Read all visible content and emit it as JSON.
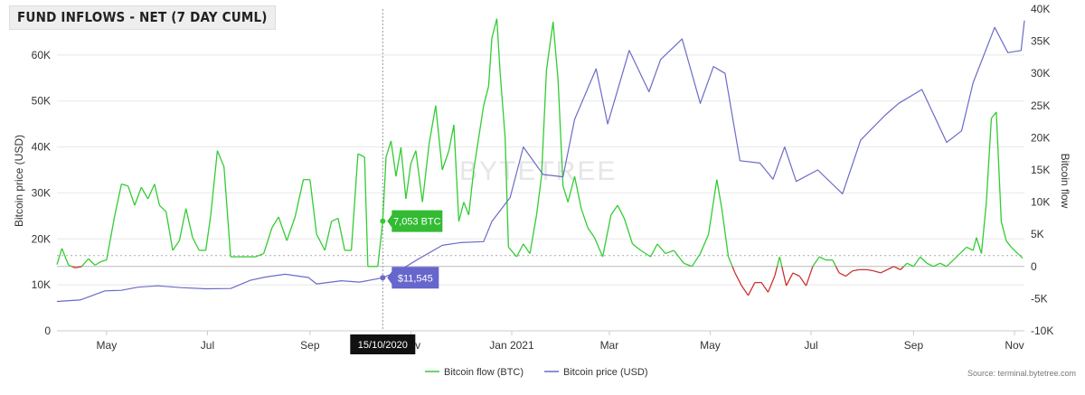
{
  "chart_data": {
    "title": "FUND INFLOWS - NET (7 DAY CUML)",
    "type": "line",
    "x_axis": {
      "ticks": [
        "May",
        "Jul",
        "Sep",
        "Nov",
        "Jan 2021",
        "Mar",
        "May",
        "Jul",
        "Sep",
        "Nov"
      ],
      "start": "2020-04-01",
      "end": "2021-11-07"
    },
    "y_left": {
      "label": "Bitcoin price (USD)",
      "ticks": [
        "0",
        "10K",
        "20K",
        "30K",
        "40K",
        "50K",
        "60K"
      ],
      "range": [
        0,
        70000
      ]
    },
    "y_right": {
      "label": "Bitcoin flow",
      "ticks": [
        "-10K",
        "-5K",
        "0",
        "5K",
        "10K",
        "15K",
        "20K",
        "25K",
        "30K",
        "35K",
        "40K"
      ],
      "range": [
        -10000,
        40000
      ]
    },
    "crosshair": {
      "date": "15/10/2020",
      "flow_label": "7,053 BTC",
      "price_label": "$11,545",
      "flow": 7053,
      "price": 11545
    },
    "watermark": "BYTETREE",
    "source": "Source: terminal.bytetree.com",
    "colors": {
      "flow_positive": "#33cc33",
      "flow_negative": "#cc3333",
      "price": "#6b6bc8",
      "flow_label_bg": "#33bb33",
      "price_label_bg": "#6666cc"
    },
    "series": [
      {
        "name": "Bitcoin flow (BTC)",
        "axis": "right",
        "points": [
          [
            "2020-04-01",
            300
          ],
          [
            "2020-04-04",
            2800
          ],
          [
            "2020-04-08",
            200
          ],
          [
            "2020-04-12",
            -200
          ],
          [
            "2020-04-16",
            0
          ],
          [
            "2020-04-20",
            1200
          ],
          [
            "2020-04-24",
            200
          ],
          [
            "2020-04-28",
            800
          ],
          [
            "2020-05-01",
            1000
          ],
          [
            "2020-05-06",
            8000
          ],
          [
            "2020-05-10",
            12800
          ],
          [
            "2020-05-14",
            12500
          ],
          [
            "2020-05-18",
            9500
          ],
          [
            "2020-05-22",
            12300
          ],
          [
            "2020-05-26",
            10500
          ],
          [
            "2020-05-30",
            12800
          ],
          [
            "2020-06-02",
            9500
          ],
          [
            "2020-06-06",
            8500
          ],
          [
            "2020-06-10",
            2500
          ],
          [
            "2020-06-14",
            4000
          ],
          [
            "2020-06-18",
            9000
          ],
          [
            "2020-06-22",
            4500
          ],
          [
            "2020-06-26",
            2500
          ],
          [
            "2020-06-30",
            2500
          ],
          [
            "2020-07-03",
            8000
          ],
          [
            "2020-07-07",
            18000
          ],
          [
            "2020-07-11",
            15500
          ],
          [
            "2020-07-15",
            1500
          ],
          [
            "2020-07-19",
            1500
          ],
          [
            "2020-07-25",
            1500
          ],
          [
            "2020-07-30",
            1500
          ],
          [
            "2020-08-04",
            2000
          ],
          [
            "2020-08-09",
            6000
          ],
          [
            "2020-08-13",
            7700
          ],
          [
            "2020-08-18",
            4000
          ],
          [
            "2020-08-23",
            7700
          ],
          [
            "2020-08-28",
            13500
          ],
          [
            "2020-09-01",
            13500
          ],
          [
            "2020-09-05",
            5000
          ],
          [
            "2020-09-10",
            2500
          ],
          [
            "2020-09-14",
            7000
          ],
          [
            "2020-09-18",
            7500
          ],
          [
            "2020-09-22",
            2500
          ],
          [
            "2020-09-26",
            2500
          ],
          [
            "2020-09-30",
            17500
          ],
          [
            "2020-10-04",
            17000
          ],
          [
            "2020-10-06",
            0
          ],
          [
            "2020-10-12",
            0
          ],
          [
            "2020-10-15",
            7053
          ],
          [
            "2020-10-17",
            17000
          ],
          [
            "2020-10-20",
            19500
          ],
          [
            "2020-10-23",
            14000
          ],
          [
            "2020-10-26",
            18500
          ],
          [
            "2020-10-29",
            10500
          ],
          [
            "2020-11-01",
            16000
          ],
          [
            "2020-11-04",
            18000
          ],
          [
            "2020-11-08",
            10000
          ],
          [
            "2020-11-12",
            19000
          ],
          [
            "2020-11-16",
            25000
          ],
          [
            "2020-11-20",
            15000
          ],
          [
            "2020-11-24",
            18000
          ],
          [
            "2020-11-27",
            22000
          ],
          [
            "2020-11-30",
            7000
          ],
          [
            "2020-12-03",
            10000
          ],
          [
            "2020-12-06",
            8000
          ],
          [
            "2020-12-09",
            15000
          ],
          [
            "2020-12-12",
            20000
          ],
          [
            "2020-12-15",
            25000
          ],
          [
            "2020-12-18",
            28000
          ],
          [
            "2020-12-20",
            35500
          ],
          [
            "2020-12-23",
            38500
          ],
          [
            "2020-12-25",
            30000
          ],
          [
            "2020-12-28",
            20000
          ],
          [
            "2020-12-30",
            3000
          ],
          [
            "2021-01-04",
            1500
          ],
          [
            "2021-01-08",
            3500
          ],
          [
            "2021-01-12",
            2000
          ],
          [
            "2021-01-16",
            8000
          ],
          [
            "2021-01-19",
            14000
          ],
          [
            "2021-01-22",
            30500
          ],
          [
            "2021-01-26",
            38000
          ],
          [
            "2021-01-29",
            29000
          ],
          [
            "2021-02-01",
            12500
          ],
          [
            "2021-02-04",
            10000
          ],
          [
            "2021-02-08",
            14000
          ],
          [
            "2021-02-12",
            9000
          ],
          [
            "2021-02-16",
            6000
          ],
          [
            "2021-02-20",
            4500
          ],
          [
            "2021-02-25",
            1500
          ],
          [
            "2021-03-02",
            8000
          ],
          [
            "2021-03-06",
            9500
          ],
          [
            "2021-03-10",
            7500
          ],
          [
            "2021-03-15",
            3500
          ],
          [
            "2021-03-20",
            2500
          ],
          [
            "2021-03-26",
            1500
          ],
          [
            "2021-03-30",
            3500
          ],
          [
            "2021-04-04",
            2000
          ],
          [
            "2021-04-09",
            2500
          ],
          [
            "2021-04-15",
            500
          ],
          [
            "2021-04-20",
            0
          ],
          [
            "2021-04-25",
            2000
          ],
          [
            "2021-04-30",
            5000
          ],
          [
            "2021-05-05",
            13500
          ],
          [
            "2021-05-08",
            9000
          ],
          [
            "2021-05-12",
            1500
          ],
          [
            "2021-05-16",
            -1000
          ],
          [
            "2021-05-20",
            -3000
          ],
          [
            "2021-05-24",
            -4500
          ],
          [
            "2021-05-28",
            -2500
          ],
          [
            "2021-06-01",
            -2500
          ],
          [
            "2021-06-05",
            -4000
          ],
          [
            "2021-06-09",
            -1500
          ],
          [
            "2021-06-12",
            1500
          ],
          [
            "2021-06-16",
            -3000
          ],
          [
            "2021-06-20",
            -1000
          ],
          [
            "2021-06-24",
            -1500
          ],
          [
            "2021-06-28",
            -3000
          ],
          [
            "2021-07-02",
            0
          ],
          [
            "2021-07-06",
            1500
          ],
          [
            "2021-07-10",
            1000
          ],
          [
            "2021-07-14",
            1000
          ],
          [
            "2021-07-18",
            -1000
          ],
          [
            "2021-07-22",
            -1500
          ],
          [
            "2021-07-26",
            -700
          ],
          [
            "2021-07-30",
            -500
          ],
          [
            "2021-08-04",
            -500
          ],
          [
            "2021-08-08",
            -700
          ],
          [
            "2021-08-12",
            -1000
          ],
          [
            "2021-08-16",
            -500
          ],
          [
            "2021-08-20",
            0
          ],
          [
            "2021-08-24",
            -500
          ],
          [
            "2021-08-28",
            500
          ],
          [
            "2021-09-01",
            0
          ],
          [
            "2021-09-05",
            1500
          ],
          [
            "2021-09-09",
            500
          ],
          [
            "2021-09-13",
            0
          ],
          [
            "2021-09-17",
            500
          ],
          [
            "2021-09-21",
            0
          ],
          [
            "2021-09-25",
            1000
          ],
          [
            "2021-09-29",
            2000
          ],
          [
            "2021-10-03",
            3000
          ],
          [
            "2021-10-07",
            2500
          ],
          [
            "2021-10-09",
            4500
          ],
          [
            "2021-10-12",
            2000
          ],
          [
            "2021-10-15",
            10000
          ],
          [
            "2021-10-18",
            23000
          ],
          [
            "2021-10-21",
            24000
          ],
          [
            "2021-10-24",
            7000
          ],
          [
            "2021-10-27",
            4000
          ],
          [
            "2021-10-30",
            3000
          ],
          [
            "2021-11-03",
            2000
          ],
          [
            "2021-11-06",
            1300
          ]
        ]
      },
      {
        "name": "Bitcoin price (USD)",
        "axis": "left",
        "points": [
          [
            "2020-04-01",
            6400
          ],
          [
            "2020-04-15",
            6700
          ],
          [
            "2020-04-30",
            8700
          ],
          [
            "2020-05-10",
            8800
          ],
          [
            "2020-05-20",
            9500
          ],
          [
            "2020-06-01",
            9800
          ],
          [
            "2020-06-15",
            9400
          ],
          [
            "2020-06-30",
            9150
          ],
          [
            "2020-07-15",
            9200
          ],
          [
            "2020-07-27",
            11000
          ],
          [
            "2020-08-05",
            11700
          ],
          [
            "2020-08-17",
            12300
          ],
          [
            "2020-08-31",
            11600
          ],
          [
            "2020-09-05",
            10200
          ],
          [
            "2020-09-20",
            10900
          ],
          [
            "2020-10-01",
            10600
          ],
          [
            "2020-10-15",
            11545
          ],
          [
            "2020-10-25",
            13100
          ],
          [
            "2020-11-05",
            15500
          ],
          [
            "2020-11-20",
            18600
          ],
          [
            "2020-12-01",
            19200
          ],
          [
            "2020-12-15",
            19400
          ],
          [
            "2020-12-20",
            23800
          ],
          [
            "2020-12-31",
            29000
          ],
          [
            "2021-01-08",
            40000
          ],
          [
            "2021-01-20",
            34000
          ],
          [
            "2021-02-01",
            33500
          ],
          [
            "2021-02-08",
            46000
          ],
          [
            "2021-02-21",
            57000
          ],
          [
            "2021-02-28",
            45000
          ],
          [
            "2021-03-13",
            61000
          ],
          [
            "2021-03-25",
            52000
          ],
          [
            "2021-04-01",
            59000
          ],
          [
            "2021-04-14",
            63500
          ],
          [
            "2021-04-25",
            49500
          ],
          [
            "2021-05-03",
            57500
          ],
          [
            "2021-05-10",
            56000
          ],
          [
            "2021-05-19",
            37000
          ],
          [
            "2021-05-31",
            36500
          ],
          [
            "2021-06-08",
            33000
          ],
          [
            "2021-06-15",
            40000
          ],
          [
            "2021-06-22",
            32500
          ],
          [
            "2021-07-05",
            35000
          ],
          [
            "2021-07-20",
            29800
          ],
          [
            "2021-07-31",
            41500
          ],
          [
            "2021-08-15",
            47000
          ],
          [
            "2021-08-23",
            49500
          ],
          [
            "2021-09-06",
            52500
          ],
          [
            "2021-09-21",
            41000
          ],
          [
            "2021-09-30",
            43500
          ],
          [
            "2021-10-07",
            54000
          ],
          [
            "2021-10-20",
            66000
          ],
          [
            "2021-10-28",
            60500
          ],
          [
            "2021-11-05",
            61000
          ],
          [
            "2021-11-07",
            67500
          ]
        ]
      }
    ]
  },
  "legend": [
    {
      "label": "Bitcoin flow (BTC)",
      "color": "#33cc33"
    },
    {
      "label": "Bitcoin price (USD)",
      "color": "#6b6bc8"
    }
  ]
}
